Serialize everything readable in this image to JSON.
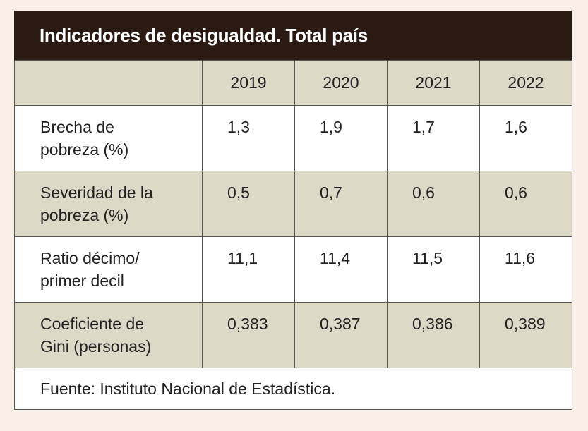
{
  "chart_data": {
    "type": "table",
    "title": "Indicadores de desigualdad. Total país",
    "columns": [
      "2019",
      "2020",
      "2021",
      "2022"
    ],
    "rows": [
      {
        "label": "Brecha de\npobreza (%)",
        "values": [
          "1,3",
          "1,9",
          "1,7",
          "1,6"
        ]
      },
      {
        "label": "Severidad de la\npobreza (%)",
        "values": [
          "0,5",
          "0,7",
          "0,6",
          "0,6"
        ]
      },
      {
        "label": "Ratio décimo/\nprimer decil",
        "values": [
          "11,1",
          "11,4",
          "11,5",
          "11,6"
        ]
      },
      {
        "label": "Coeficiente de\nGini (personas)",
        "values": [
          "0,383",
          "0,387",
          "0,386",
          "0,389"
        ]
      }
    ],
    "source": "Fuente: Instituto Nacional de Estadística."
  },
  "colors": {
    "title_bg": "#2a1a12",
    "shaded_row": "#ddd9c7",
    "page_bg": "#f8efe9"
  }
}
